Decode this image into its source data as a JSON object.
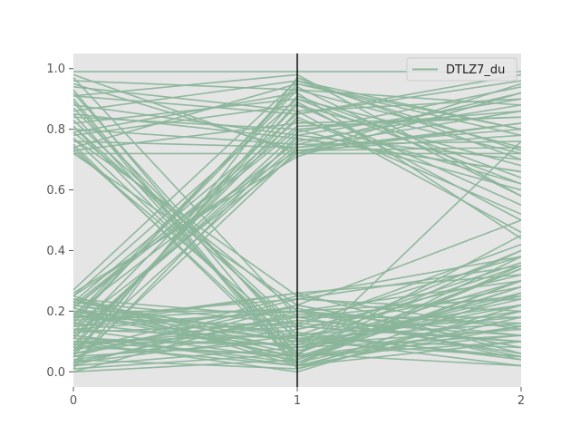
{
  "chart_data": {
    "type": "line",
    "subtype": "parallel-coordinates",
    "title": "",
    "xlabel": "",
    "ylabel": "",
    "x": [
      0,
      1,
      2
    ],
    "x_ticks": [
      "0",
      "1",
      "2"
    ],
    "y_ticks": [
      "0.0",
      "0.2",
      "0.4",
      "0.6",
      "0.8",
      "1.0"
    ],
    "xlim": [
      0,
      2
    ],
    "ylim": [
      -0.05,
      1.05
    ],
    "grid": false,
    "background_color": "#e5e5e5",
    "line_color": "#8bb59a",
    "highlight_axis": 1,
    "highlight_axis_color": "#000000",
    "legend": {
      "label": "DTLZ7_du",
      "position": "top-right"
    },
    "series_name": "DTLZ7_du",
    "note_values": "Each line is one solution; values given per axis as [x0, x1, x2]",
    "lines": [
      [
        0.99,
        0.99,
        0.99
      ],
      [
        0.98,
        0.72,
        0.95
      ],
      [
        0.96,
        0.93,
        0.88
      ],
      [
        0.95,
        0.73,
        0.82
      ],
      [
        0.93,
        0.05,
        0.76
      ],
      [
        0.92,
        0.1,
        0.4
      ],
      [
        0.91,
        0.85,
        0.98
      ],
      [
        0.9,
        0.02,
        0.2
      ],
      [
        0.88,
        0.78,
        0.7
      ],
      [
        0.87,
        0.12,
        0.05
      ],
      [
        0.86,
        0.96,
        0.73
      ],
      [
        0.85,
        0.04,
        0.3
      ],
      [
        0.84,
        0.8,
        0.86
      ],
      [
        0.83,
        0.15,
        0.1
      ],
      [
        0.82,
        0.9,
        0.62
      ],
      [
        0.81,
        0.06,
        0.45
      ],
      [
        0.8,
        0.75,
        0.92
      ],
      [
        0.79,
        0.2,
        0.15
      ],
      [
        0.78,
        0.88,
        0.55
      ],
      [
        0.77,
        0.08,
        0.25
      ],
      [
        0.76,
        0.74,
        0.8
      ],
      [
        0.75,
        0.03,
        0.35
      ],
      [
        0.74,
        0.95,
        0.78
      ],
      [
        0.73,
        0.11,
        0.08
      ],
      [
        0.72,
        0.72,
        0.72
      ],
      [
        0.72,
        0.22,
        0.5
      ],
      [
        0.73,
        0.82,
        0.84
      ],
      [
        0.74,
        0.05,
        0.12
      ],
      [
        0.79,
        0.92,
        0.44
      ],
      [
        0.81,
        0.14,
        0.28
      ],
      [
        0.85,
        0.77,
        0.66
      ],
      [
        0.89,
        0.01,
        0.18
      ],
      [
        0.94,
        0.86,
        0.9
      ],
      [
        0.97,
        0.18,
        0.06
      ],
      [
        0.91,
        0.98,
        0.58
      ],
      [
        0.77,
        0.25,
        0.38
      ],
      [
        0.27,
        0.96,
        0.8
      ],
      [
        0.25,
        0.9,
        0.72
      ],
      [
        0.24,
        0.02,
        0.1
      ],
      [
        0.23,
        0.85,
        0.96
      ],
      [
        0.22,
        0.1,
        0.35
      ],
      [
        0.21,
        0.8,
        0.6
      ],
      [
        0.2,
        0.05,
        0.15
      ],
      [
        0.19,
        0.76,
        0.88
      ],
      [
        0.18,
        0.15,
        0.42
      ],
      [
        0.17,
        0.93,
        0.74
      ],
      [
        0.16,
        0.08,
        0.22
      ],
      [
        0.15,
        0.72,
        0.82
      ],
      [
        0.14,
        0.2,
        0.05
      ],
      [
        0.13,
        0.88,
        0.68
      ],
      [
        0.12,
        0.03,
        0.3
      ],
      [
        0.11,
        0.79,
        0.94
      ],
      [
        0.1,
        0.12,
        0.18
      ],
      [
        0.09,
        0.84,
        0.52
      ],
      [
        0.08,
        0.06,
        0.4
      ],
      [
        0.07,
        0.74,
        0.86
      ],
      [
        0.06,
        0.17,
        0.12
      ],
      [
        0.05,
        0.91,
        0.64
      ],
      [
        0.04,
        0.01,
        0.26
      ],
      [
        0.03,
        0.73,
        0.78
      ],
      [
        0.02,
        0.22,
        0.08
      ],
      [
        0.01,
        0.97,
        0.7
      ],
      [
        0.0,
        0.04,
        0.34
      ],
      [
        0.02,
        0.78,
        0.9
      ],
      [
        0.05,
        0.24,
        0.2
      ],
      [
        0.08,
        0.86,
        0.46
      ],
      [
        0.1,
        0.09,
        0.14
      ],
      [
        0.12,
        0.75,
        0.76
      ],
      [
        0.15,
        0.26,
        0.32
      ],
      [
        0.18,
        0.94,
        0.58
      ],
      [
        0.2,
        0.13,
        0.04
      ],
      [
        0.22,
        0.81,
        0.84
      ],
      [
        0.24,
        0.07,
        0.24
      ],
      [
        0.26,
        0.71,
        0.92
      ],
      [
        0.03,
        0.19,
        0.16
      ],
      [
        0.06,
        0.89,
        0.5
      ],
      [
        0.09,
        0.02,
        0.38
      ],
      [
        0.11,
        0.77,
        0.66
      ],
      [
        0.14,
        0.11,
        0.02
      ],
      [
        0.16,
        0.95,
        0.8
      ],
      [
        0.19,
        0.05,
        0.28
      ],
      [
        0.21,
        0.83,
        0.62
      ],
      [
        0.23,
        0.16,
        0.1
      ],
      [
        0.25,
        0.73,
        0.74
      ],
      [
        0.05,
        0.1,
        0.2
      ],
      [
        0.1,
        0.05,
        0.1
      ],
      [
        0.15,
        0.2,
        0.3
      ],
      [
        0.2,
        0.1,
        0.05
      ],
      [
        0.08,
        0.18,
        0.25
      ],
      [
        0.12,
        0.02,
        0.15
      ],
      [
        0.18,
        0.24,
        0.35
      ],
      [
        0.02,
        0.08,
        0.12
      ],
      [
        0.22,
        0.12,
        0.22
      ],
      [
        0.06,
        0.22,
        0.08
      ],
      [
        0.14,
        0.04,
        0.28
      ],
      [
        0.24,
        0.18,
        0.18
      ],
      [
        0.04,
        0.14,
        0.32
      ],
      [
        0.16,
        0.26,
        0.06
      ],
      [
        0.1,
        0.0,
        0.22
      ],
      [
        0.2,
        0.2,
        0.12
      ],
      [
        0.01,
        0.06,
        0.02
      ],
      [
        0.13,
        0.16,
        0.38
      ],
      [
        0.19,
        0.08,
        0.26
      ],
      [
        0.07,
        0.25,
        0.14
      ],
      [
        0.25,
        0.03,
        0.2
      ],
      [
        0.03,
        0.12,
        0.36
      ],
      [
        0.17,
        0.21,
        0.04
      ],
      [
        0.11,
        0.09,
        0.3
      ],
      [
        0.09,
        0.15,
        0.1
      ],
      [
        0.21,
        0.06,
        0.34
      ],
      [
        0.0,
        0.2,
        0.24
      ],
      [
        0.23,
        0.11,
        0.16
      ]
    ]
  }
}
